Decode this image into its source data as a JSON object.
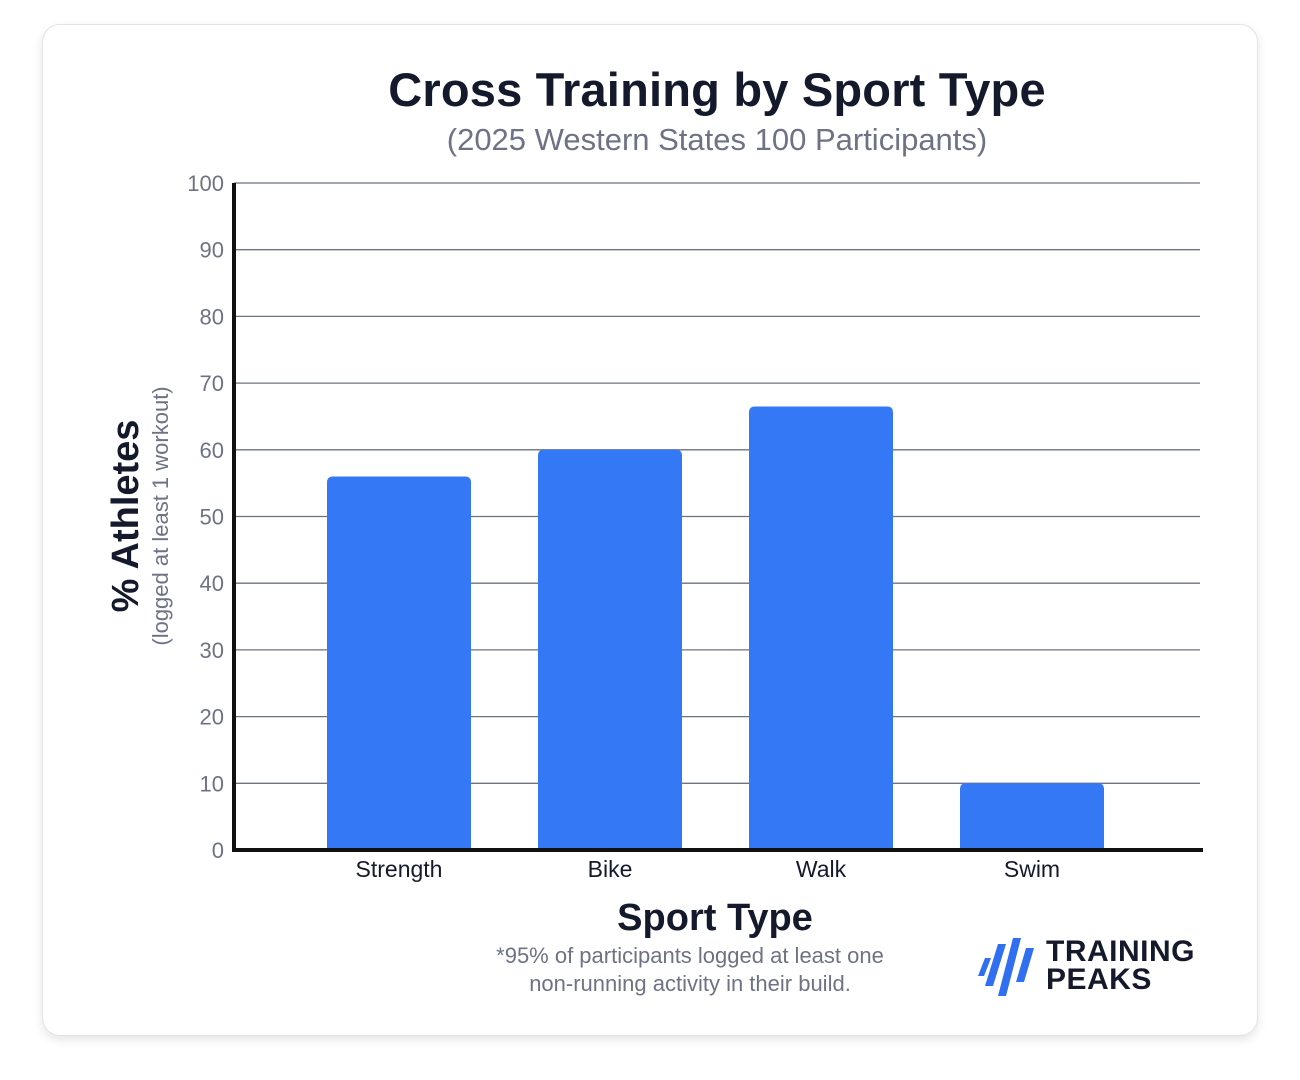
{
  "header": {
    "title": "Cross Training by Sport Type",
    "subtitle": "(2025 Western States 100 Participants)"
  },
  "footnote": {
    "line1": "*95% of participants logged at least one",
    "line2": "non-running activity in their build."
  },
  "logo": {
    "line1": "TRAINING",
    "line2": "PEAKS",
    "icon": "trainingpeaks-logo-icon"
  },
  "colors": {
    "bar": "#3478f6",
    "axis": "#111111",
    "grid": "#6b7280",
    "tick_text": "#6d7385",
    "label_text": "#141a2b"
  },
  "chart_data": {
    "type": "bar",
    "title": "Cross Training by Sport Type",
    "subtitle": "(2025 Western States 100 Participants)",
    "xlabel": "Sport Type",
    "ylabel": "% Athletes",
    "ylabel_sub": "(logged at least 1 workout)",
    "categories": [
      "Strength",
      "Bike",
      "Walk",
      "Swim"
    ],
    "values": [
      56,
      60,
      66.5,
      10
    ],
    "ylim": [
      0,
      100
    ],
    "yticks": [
      "0",
      "10",
      "20",
      "30",
      "40",
      "50",
      "60",
      "70",
      "80",
      "90",
      "100"
    ],
    "grid": true,
    "legend": "none"
  }
}
